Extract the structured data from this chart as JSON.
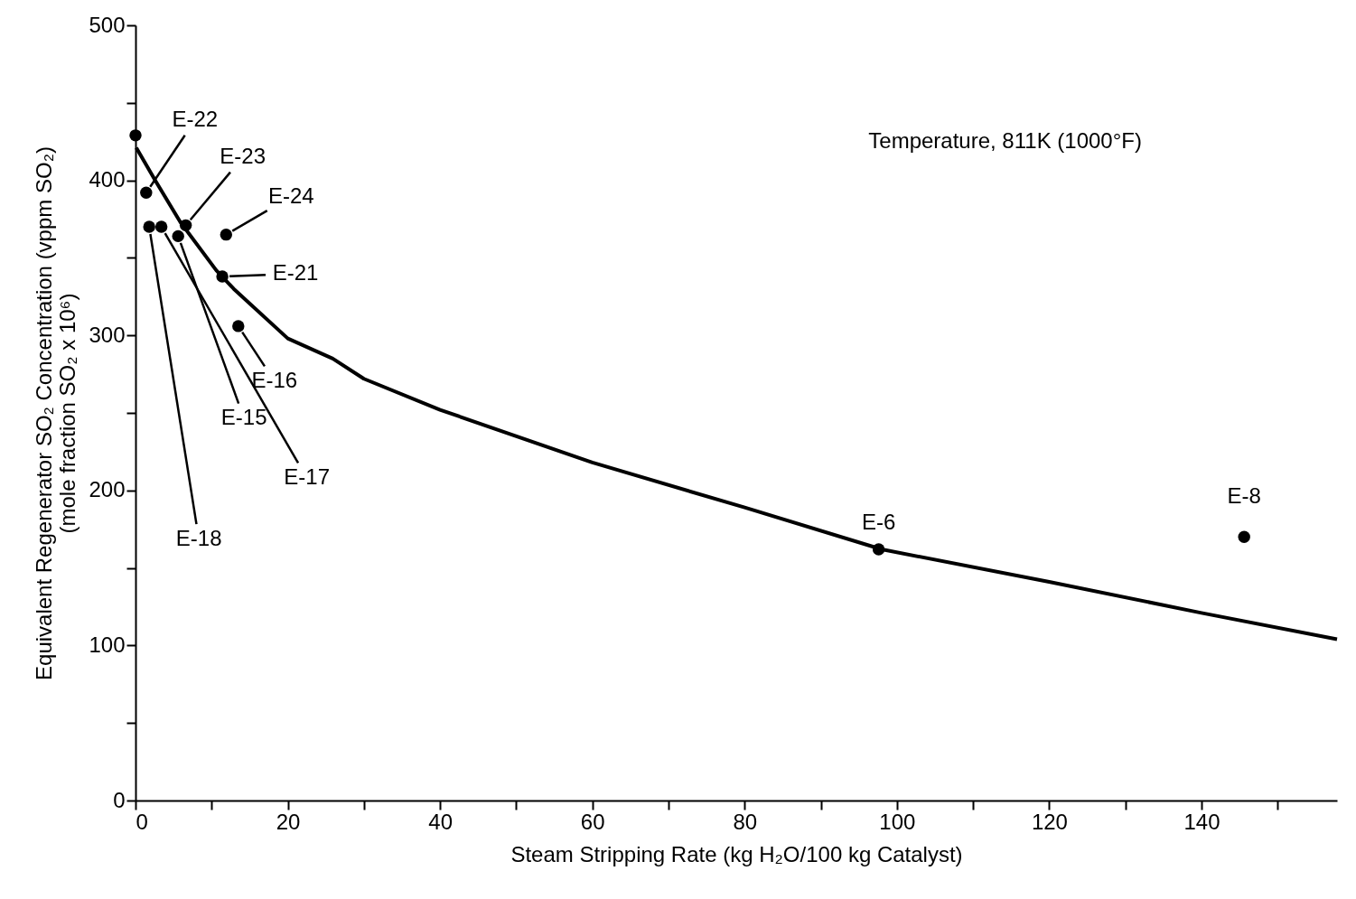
{
  "chart_data": {
    "type": "scatter",
    "ylabel": "Equivalent Regenerator SO₂ Concentration (vppm SO₂)\n(mole fraction SO₂ x 10⁶)",
    "xlabel": "Steam Stripping Rate (kg H₂O/100 kg Catalyst)",
    "xlim": [
      0,
      157.8
    ],
    "ylim": [
      0,
      500
    ],
    "xticks": [
      0,
      {
        "value": 10,
        "label": null
      },
      20,
      {
        "value": 30,
        "label": null
      },
      40,
      {
        "value": 50,
        "label": null
      },
      60,
      {
        "value": 70,
        "label": null
      },
      80,
      {
        "value": 90,
        "label": null
      },
      100,
      {
        "value": 110,
        "label": null
      },
      120,
      {
        "value": 130,
        "label": null
      },
      140,
      {
        "value": 150,
        "label": null
      }
    ],
    "yticks": [
      0,
      {
        "value": 50,
        "label": null
      },
      100,
      {
        "value": 150,
        "label": null
      },
      200,
      {
        "value": 250,
        "label": null
      },
      300,
      {
        "value": 350,
        "label": null
      },
      400,
      {
        "value": 450,
        "label": null
      },
      500
    ],
    "grid": false,
    "series": [
      {
        "type": "line",
        "color": "#000000",
        "line_style": "solid",
        "marker": "none",
        "x": [
          0.1,
          2.7,
          5.9,
          10.6,
          12.9,
          20,
          25.9,
          30,
          40,
          60,
          80,
          98,
          120,
          140,
          157.8
        ],
        "values": [
          421,
          399,
          373,
          342,
          330,
          298,
          285,
          272,
          252,
          218,
          189,
          162,
          141,
          121,
          104
        ]
      },
      {
        "color": "#000000",
        "marker": "circle",
        "x": [
          0,
          1.4,
          1.8,
          3.4,
          5.6,
          6.6,
          11.9,
          11.4,
          13.5,
          97.6,
          145.6
        ],
        "values": [
          429,
          392,
          370,
          370,
          364,
          371,
          365,
          338,
          306,
          162,
          170
        ]
      }
    ],
    "annotations": [
      {
        "text": "E-22",
        "x": 1.4,
        "y": 392
      },
      {
        "text": "E-23",
        "x": 6.6,
        "y": 371
      },
      {
        "text": "E-24",
        "x": 11.9,
        "y": 365
      },
      {
        "text": "E-21",
        "x": 11.4,
        "y": 338
      },
      {
        "text": "E-16",
        "x": 13.5,
        "y": 306
      },
      {
        "text": "E-15",
        "x": 5.6,
        "y": 364
      },
      {
        "text": "E-17",
        "x": 3.4,
        "y": 370
      },
      {
        "text": "E-18",
        "x": 1.8,
        "y": 370
      },
      {
        "text": "E-6",
        "x": 97.6,
        "y": 162
      },
      {
        "text": "E-8",
        "x": 145.6,
        "y": 170
      },
      "Temperature, 811K (1000°F)"
    ]
  }
}
